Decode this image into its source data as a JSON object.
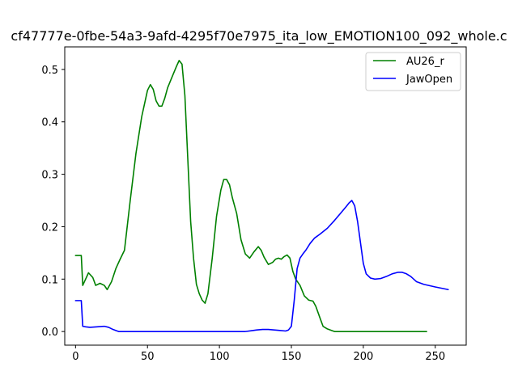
{
  "chart_data": {
    "type": "line",
    "title": "cf47777e-0fbe-54a3-9afd-4295f70e7975_ita_low_EMOTION100_092_whole.c",
    "xlabel": "",
    "ylabel": "",
    "xlim": [
      -7.5,
      271.5
    ],
    "ylim": [
      -0.026,
      0.543
    ],
    "xticks": [
      0,
      50,
      100,
      150,
      200,
      250
    ],
    "xtick_labels": [
      "0",
      "50",
      "100",
      "150",
      "200",
      "250"
    ],
    "yticks": [
      0.0,
      0.1,
      0.2,
      0.3,
      0.4,
      0.5
    ],
    "ytick_labels": [
      "0.0",
      "0.1",
      "0.2",
      "0.3",
      "0.4",
      "0.5"
    ],
    "grid": false,
    "legend_position": "top-right",
    "series": [
      {
        "name": "AU26_r",
        "color": "#008000",
        "x": [
          0,
          2,
          4,
          5,
          7,
          9,
          12,
          14,
          17,
          20,
          22,
          25,
          28,
          31,
          34,
          38,
          42,
          46,
          50,
          52,
          54,
          56,
          58,
          60,
          62,
          64,
          67,
          70,
          72,
          74,
          76,
          78,
          80,
          82,
          84,
          86,
          88,
          90,
          92,
          95,
          98,
          101,
          103,
          105,
          107,
          109,
          112,
          115,
          118,
          121,
          124,
          127,
          129,
          131,
          134,
          137,
          139,
          141,
          143,
          145,
          147,
          149,
          151,
          153,
          156,
          159,
          162,
          165,
          167,
          170,
          172,
          175,
          178,
          180,
          185,
          190,
          200,
          210,
          220,
          230,
          240,
          244
        ],
        "y": [
          0.145,
          0.145,
          0.145,
          0.088,
          0.1,
          0.112,
          0.103,
          0.088,
          0.092,
          0.088,
          0.08,
          0.095,
          0.12,
          0.138,
          0.155,
          0.25,
          0.34,
          0.41,
          0.46,
          0.471,
          0.462,
          0.44,
          0.43,
          0.43,
          0.445,
          0.465,
          0.485,
          0.505,
          0.517,
          0.51,
          0.45,
          0.33,
          0.21,
          0.14,
          0.09,
          0.072,
          0.06,
          0.054,
          0.072,
          0.14,
          0.22,
          0.27,
          0.29,
          0.29,
          0.28,
          0.255,
          0.225,
          0.175,
          0.148,
          0.14,
          0.152,
          0.162,
          0.155,
          0.142,
          0.128,
          0.132,
          0.138,
          0.14,
          0.138,
          0.143,
          0.146,
          0.14,
          0.115,
          0.1,
          0.088,
          0.068,
          0.06,
          0.058,
          0.048,
          0.025,
          0.01,
          0.005,
          0.002,
          0.0,
          0.0,
          0.0,
          0.0,
          0.0,
          0.0,
          0.0,
          0.0,
          0.0
        ]
      },
      {
        "name": "JawOpen",
        "color": "#0000ff",
        "x": [
          0,
          2,
          4,
          5,
          7,
          10,
          15,
          20,
          23,
          26,
          28,
          30,
          35,
          40,
          50,
          60,
          70,
          80,
          90,
          100,
          110,
          118,
          122,
          126,
          130,
          134,
          138,
          142,
          146,
          148,
          150,
          152,
          154,
          156,
          158,
          160,
          163,
          166,
          170,
          175,
          180,
          184,
          188,
          190,
          192,
          194,
          196,
          198,
          200,
          202,
          205,
          208,
          212,
          216,
          220,
          224,
          227,
          230,
          233,
          237,
          242,
          250,
          259
        ],
        "y": [
          0.059,
          0.059,
          0.059,
          0.01,
          0.009,
          0.008,
          0.009,
          0.01,
          0.008,
          0.004,
          0.002,
          0.0,
          0.0,
          0.0,
          0.0,
          0.0,
          0.0,
          0.0,
          0.0,
          0.0,
          0.0,
          0.0,
          0.0015,
          0.003,
          0.004,
          0.004,
          0.003,
          0.002,
          0.001,
          0.003,
          0.01,
          0.06,
          0.12,
          0.14,
          0.148,
          0.155,
          0.168,
          0.178,
          0.186,
          0.197,
          0.212,
          0.225,
          0.238,
          0.245,
          0.25,
          0.24,
          0.21,
          0.17,
          0.13,
          0.11,
          0.102,
          0.1,
          0.101,
          0.105,
          0.11,
          0.113,
          0.113,
          0.11,
          0.105,
          0.095,
          0.09,
          0.085,
          0.08
        ]
      }
    ]
  }
}
